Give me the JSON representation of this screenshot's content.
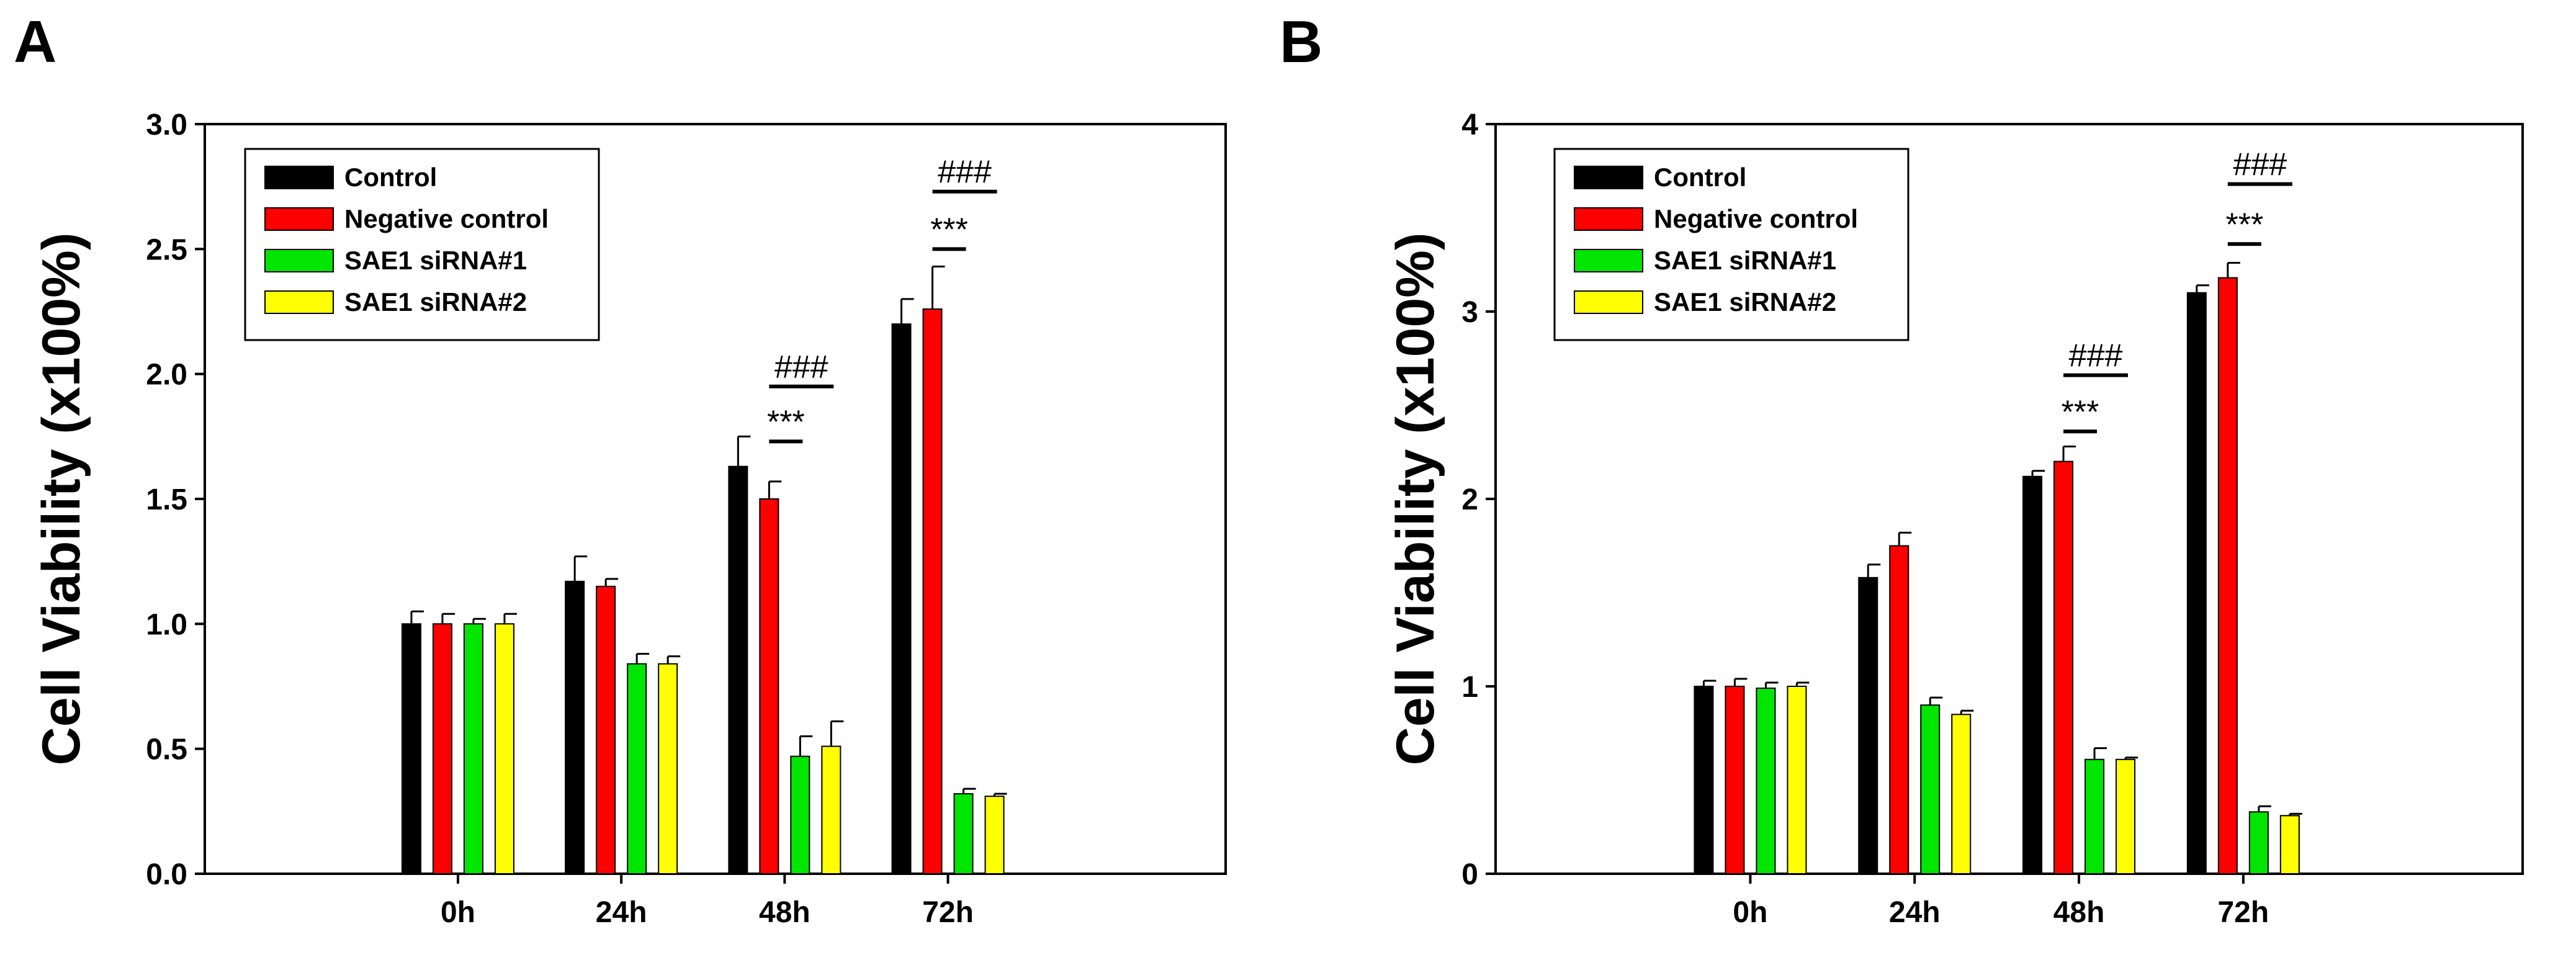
{
  "chart_data": [
    {
      "panel": "A",
      "type": "bar",
      "ylabel": "Cell Viability (x100%)",
      "xlabel": "",
      "categories": [
        "0h",
        "24h",
        "48h",
        "72h"
      ],
      "ylim": [
        0,
        3.0
      ],
      "yticks": [
        "0.0",
        "0.5",
        "1.0",
        "1.5",
        "2.0",
        "2.5",
        "3.0"
      ],
      "series": [
        {
          "name": "Control",
          "color": "#000000",
          "values": [
            1.0,
            1.17,
            1.63,
            2.2
          ],
          "errors": [
            0.05,
            0.1,
            0.12,
            0.1
          ]
        },
        {
          "name": "Negative control",
          "color": "#ff0000",
          "values": [
            1.0,
            1.15,
            1.5,
            2.26
          ],
          "errors": [
            0.04,
            0.03,
            0.07,
            0.17
          ]
        },
        {
          "name": "SAE1 siRNA#1",
          "color": "#00e600",
          "values": [
            1.0,
            0.84,
            0.47,
            0.32
          ],
          "errors": [
            0.02,
            0.04,
            0.08,
            0.02
          ]
        },
        {
          "name": "SAE1 siRNA#2",
          "color": "#ffff00",
          "values": [
            1.0,
            0.84,
            0.51,
            0.31
          ],
          "errors": [
            0.04,
            0.03,
            0.1,
            0.01
          ]
        }
      ],
      "annotations": [
        {
          "text": "***",
          "category": "48h",
          "y": 1.73,
          "from": "Negative control",
          "to": "SAE1 siRNA#1"
        },
        {
          "text": "###",
          "category": "48h",
          "y": 1.95,
          "from": "Negative control",
          "to": "SAE1 siRNA#2"
        },
        {
          "text": "***",
          "category": "72h",
          "y": 2.5,
          "from": "Negative control",
          "to": "SAE1 siRNA#1"
        },
        {
          "text": "###",
          "category": "72h",
          "y": 2.73,
          "from": "Negative control",
          "to": "SAE1 siRNA#2"
        }
      ],
      "legend": "top-left"
    },
    {
      "panel": "B",
      "type": "bar",
      "ylabel": "Cell Viability (x100%)",
      "xlabel": "",
      "categories": [
        "0h",
        "24h",
        "48h",
        "72h"
      ],
      "ylim": [
        0,
        4
      ],
      "yticks": [
        "0",
        "1",
        "2",
        "3",
        "4"
      ],
      "series": [
        {
          "name": "Control",
          "color": "#000000",
          "values": [
            1.0,
            1.58,
            2.12,
            3.1
          ],
          "errors": [
            0.03,
            0.07,
            0.03,
            0.04
          ]
        },
        {
          "name": "Negative control",
          "color": "#ff0000",
          "values": [
            1.0,
            1.75,
            2.2,
            3.18
          ],
          "errors": [
            0.04,
            0.07,
            0.08,
            0.08
          ]
        },
        {
          "name": "SAE1 siRNA#1",
          "color": "#00e600",
          "values": [
            0.99,
            0.9,
            0.61,
            0.33
          ],
          "errors": [
            0.03,
            0.04,
            0.06,
            0.03
          ]
        },
        {
          "name": "SAE1 siRNA#2",
          "color": "#ffff00",
          "values": [
            1.0,
            0.85,
            0.61,
            0.31
          ],
          "errors": [
            0.02,
            0.02,
            0.01,
            0.01
          ]
        }
      ],
      "annotations": [
        {
          "text": "***",
          "category": "48h",
          "y": 2.36,
          "from": "Negative control",
          "to": "SAE1 siRNA#1"
        },
        {
          "text": "###",
          "category": "48h",
          "y": 2.66,
          "from": "Negative control",
          "to": "SAE1 siRNA#2"
        },
        {
          "text": "***",
          "category": "72h",
          "y": 3.36,
          "from": "Negative control",
          "to": "SAE1 siRNA#1"
        },
        {
          "text": "###",
          "category": "72h",
          "y": 3.68,
          "from": "Negative control",
          "to": "SAE1 siRNA#2"
        }
      ],
      "legend": "top-left"
    }
  ]
}
